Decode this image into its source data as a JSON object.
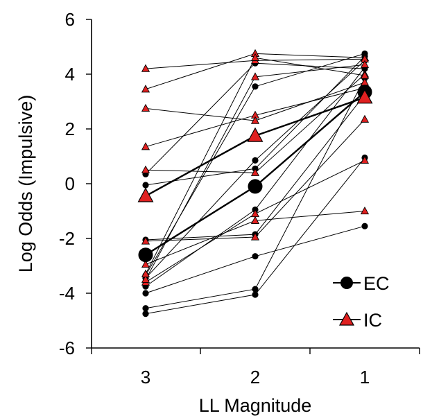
{
  "chart_data": {
    "type": "line",
    "xlabel": "LL Magnitude",
    "ylabel": "Log Odds (Impulsive)",
    "categories": [
      "3",
      "2",
      "1"
    ],
    "ylim": [
      -6,
      6
    ],
    "yticks": [
      "-6",
      "-4",
      "-2",
      "0",
      "2",
      "4",
      "6"
    ],
    "legend": [
      {
        "label": "EC",
        "marker": "circle",
        "color": "#000000"
      },
      {
        "label": "IC",
        "marker": "triangle",
        "color": "#e02020"
      }
    ],
    "legend_position": "bottom-right",
    "colors": {
      "ec": "#000000",
      "ic_fill": "#e02020",
      "ic_edge": "#000000",
      "line": "#000000"
    },
    "series": [
      {
        "group": "EC",
        "values": [
          -4.75,
          -4.05,
          0.95
        ]
      },
      {
        "group": "EC",
        "values": [
          -4.55,
          -3.85,
          3.85
        ]
      },
      {
        "group": "EC",
        "values": [
          -4.0,
          -2.65,
          -1.55
        ]
      },
      {
        "group": "EC",
        "values": [
          -3.75,
          -0.95,
          4.25
        ]
      },
      {
        "group": "EC",
        "values": [
          -3.45,
          0.85,
          4.5
        ]
      },
      {
        "group": "EC",
        "values": [
          -3.35,
          3.55,
          4.75
        ]
      },
      {
        "group": "EC",
        "values": [
          -2.05,
          -1.85,
          3.25
        ]
      },
      {
        "group": "EC",
        "values": [
          -0.05,
          0.55,
          4.65
        ]
      },
      {
        "group": "EC",
        "values": [
          0.35,
          4.4,
          4.2
        ]
      },
      {
        "group": "IC",
        "values": [
          -3.6,
          -1.1,
          0.85
        ]
      },
      {
        "group": "IC",
        "values": [
          -2.95,
          -1.35,
          -1.0
        ]
      },
      {
        "group": "IC",
        "values": [
          -2.1,
          -1.95,
          2.35
        ]
      },
      {
        "group": "IC",
        "values": [
          0.5,
          0.4,
          4.0
        ]
      },
      {
        "group": "IC",
        "values": [
          1.35,
          2.5,
          3.5
        ]
      },
      {
        "group": "IC",
        "values": [
          2.75,
          2.3,
          3.7
        ]
      },
      {
        "group": "IC",
        "values": [
          3.45,
          4.75,
          4.6
        ]
      },
      {
        "group": "IC",
        "values": [
          4.2,
          4.5,
          4.55
        ]
      },
      {
        "group": "IC",
        "values": [
          -3.5,
          3.9,
          4.35
        ]
      },
      {
        "group": "IC",
        "values": [
          -3.3,
          4.6,
          3.95
        ]
      }
    ],
    "means": [
      {
        "group": "EC",
        "values": [
          -2.6,
          -0.1,
          3.35
        ]
      },
      {
        "group": "IC",
        "values": [
          -0.45,
          1.75,
          3.15
        ]
      }
    ]
  }
}
